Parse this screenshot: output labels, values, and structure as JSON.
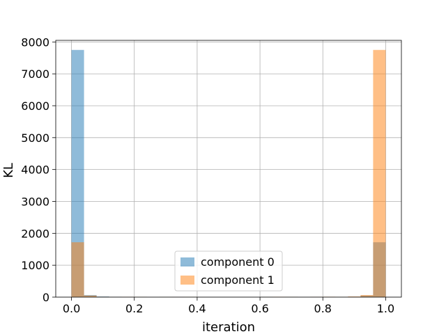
{
  "chart_data": {
    "type": "bar",
    "subtype": "overlapping-histogram",
    "title": "",
    "xlabel": "iteration",
    "ylabel": "KL",
    "xlim": [
      -0.05,
      1.05
    ],
    "ylim": [
      0,
      8050
    ],
    "x_ticks": [
      0.0,
      0.2,
      0.4,
      0.6,
      0.8,
      1.0
    ],
    "x_tick_labels": [
      "0.0",
      "0.2",
      "0.4",
      "0.6",
      "0.8",
      "1.0"
    ],
    "y_ticks": [
      0,
      1000,
      2000,
      3000,
      4000,
      5000,
      6000,
      7000,
      8000
    ],
    "y_tick_labels": [
      "0",
      "1000",
      "2000",
      "3000",
      "4000",
      "5000",
      "6000",
      "7000",
      "8000"
    ],
    "grid": true,
    "legend_position": "lower-center",
    "bin_width": 0.04,
    "series": [
      {
        "name": "component 0",
        "color": "#1f77b4",
        "bins": [
          {
            "x0": 0.0,
            "x1": 0.04,
            "value": 7750
          },
          {
            "x0": 0.04,
            "x1": 0.08,
            "value": 65
          },
          {
            "x0": 0.08,
            "x1": 0.12,
            "value": 20
          },
          {
            "x0": 0.12,
            "x1": 0.16,
            "value": 12
          },
          {
            "x0": 0.16,
            "x1": 0.2,
            "value": 10
          },
          {
            "x0": 0.2,
            "x1": 0.24,
            "value": 8
          },
          {
            "x0": 0.28,
            "x1": 0.32,
            "value": 8
          },
          {
            "x0": 0.32,
            "x1": 0.36,
            "value": 10
          },
          {
            "x0": 0.36,
            "x1": 0.4,
            "value": 6
          },
          {
            "x0": 0.6,
            "x1": 0.64,
            "value": 8
          },
          {
            "x0": 0.64,
            "x1": 0.68,
            "value": 6
          },
          {
            "x0": 0.68,
            "x1": 0.72,
            "value": 6
          },
          {
            "x0": 0.76,
            "x1": 0.8,
            "value": 8
          },
          {
            "x0": 0.8,
            "x1": 0.84,
            "value": 10
          },
          {
            "x0": 0.84,
            "x1": 0.88,
            "value": 8
          },
          {
            "x0": 0.88,
            "x1": 0.92,
            "value": 12
          },
          {
            "x0": 0.92,
            "x1": 0.96,
            "value": 50
          },
          {
            "x0": 0.96,
            "x1": 1.0,
            "value": 1720
          }
        ]
      },
      {
        "name": "component 1",
        "color": "#ff7f0e",
        "bins": [
          {
            "x0": 0.0,
            "x1": 0.04,
            "value": 1720
          },
          {
            "x0": 0.04,
            "x1": 0.08,
            "value": 50
          },
          {
            "x0": 0.08,
            "x1": 0.12,
            "value": 12
          },
          {
            "x0": 0.12,
            "x1": 0.16,
            "value": 8
          },
          {
            "x0": 0.16,
            "x1": 0.2,
            "value": 10
          },
          {
            "x0": 0.2,
            "x1": 0.24,
            "value": 8
          },
          {
            "x0": 0.28,
            "x1": 0.32,
            "value": 6
          },
          {
            "x0": 0.32,
            "x1": 0.36,
            "value": 6
          },
          {
            "x0": 0.36,
            "x1": 0.4,
            "value": 8
          },
          {
            "x0": 0.6,
            "x1": 0.64,
            "value": 6
          },
          {
            "x0": 0.64,
            "x1": 0.68,
            "value": 10
          },
          {
            "x0": 0.68,
            "x1": 0.72,
            "value": 8
          },
          {
            "x0": 0.76,
            "x1": 0.8,
            "value": 10
          },
          {
            "x0": 0.8,
            "x1": 0.84,
            "value": 12
          },
          {
            "x0": 0.84,
            "x1": 0.88,
            "value": 8
          },
          {
            "x0": 0.88,
            "x1": 0.92,
            "value": 20
          },
          {
            "x0": 0.92,
            "x1": 0.96,
            "value": 65
          },
          {
            "x0": 0.96,
            "x1": 1.0,
            "value": 7750
          }
        ]
      }
    ]
  }
}
